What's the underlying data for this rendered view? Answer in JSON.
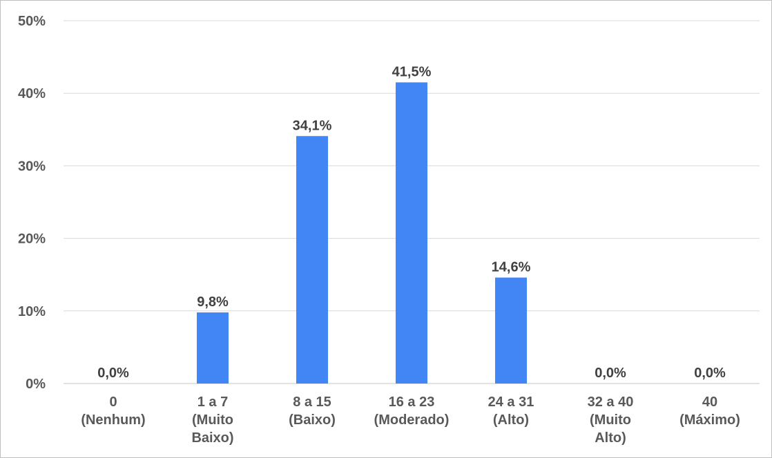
{
  "chart_data": {
    "type": "bar",
    "title": "",
    "xlabel": "",
    "ylabel": "",
    "categories": [
      [
        "0",
        "(Nenhum)"
      ],
      [
        "1 a 7",
        "(Muito",
        "Baixo)"
      ],
      [
        "8 a 15",
        "(Baixo)"
      ],
      [
        "16 a 23",
        "(Moderado)"
      ],
      [
        "24 a 31",
        "(Alto)"
      ],
      [
        "32 a 40",
        "(Muito",
        "Alto)"
      ],
      [
        "40",
        "(Máximo)"
      ]
    ],
    "values": [
      0.0,
      9.8,
      34.1,
      41.5,
      14.6,
      0.0,
      0.0
    ],
    "data_labels": [
      "0,0%",
      "9,8%",
      "34,1%",
      "41,5%",
      "14,6%",
      "0,0%",
      "0,0%"
    ],
    "ylim": [
      0,
      50
    ],
    "yticks": [
      0,
      10,
      20,
      30,
      40,
      50
    ],
    "ytick_labels": [
      "0%",
      "10%",
      "20%",
      "30%",
      "40%",
      "50%"
    ],
    "grid": true,
    "bar_color": "#4285F4",
    "gridline_color": "#D9D9D9",
    "label_color": "#595959"
  }
}
